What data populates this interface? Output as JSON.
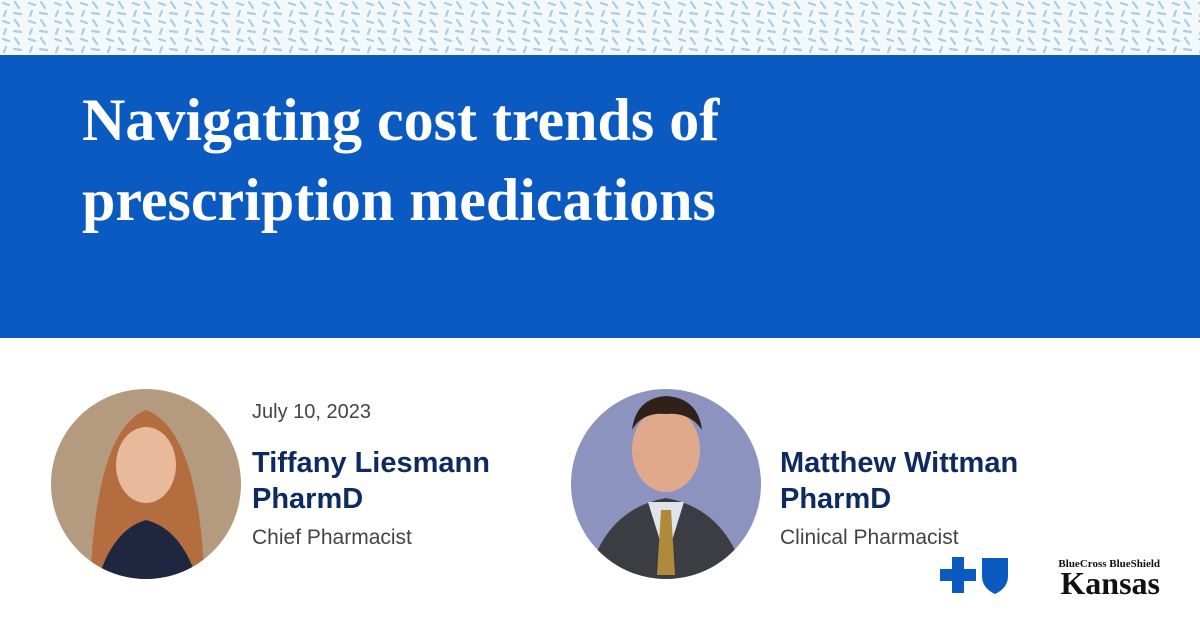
{
  "title": {
    "lines": [
      "Navigating cost trends of",
      "prescription medications"
    ]
  },
  "date": "July 10, 2023",
  "speakers": [
    {
      "name": "Tiffany Liesmann",
      "credential": "PharmD",
      "role": "Chief Pharmacist"
    },
    {
      "name": "Matthew Wittman",
      "credential": "PharmD",
      "role": "Clinical Pharmacist"
    }
  ],
  "logo": {
    "brand": "BlueCross BlueShield",
    "region": "Kansas"
  }
}
